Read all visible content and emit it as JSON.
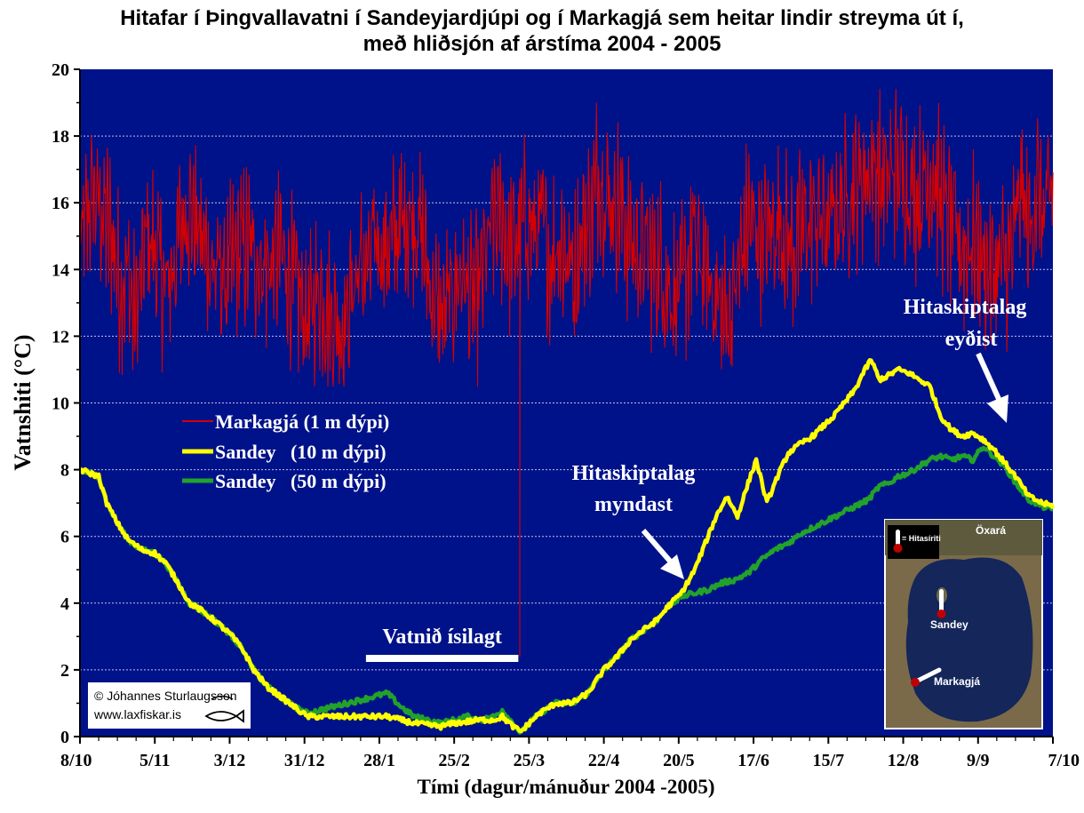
{
  "title_line1": "Hitafar í Þingvallavatni í Sandeyjardjúpi og í Markagjá sem heitar lindir streyma út í,",
  "title_line2": "með hliðsjón af árstíma 2004 - 2005",
  "chart_data": {
    "type": "line",
    "xlabel": "Tími (dagur/mánuður 2004 -2005)",
    "ylabel": "Vatnshiti (°C)",
    "ylim": [
      0,
      20
    ],
    "yticks": [
      0,
      2,
      4,
      6,
      8,
      10,
      12,
      14,
      16,
      18,
      20
    ],
    "xlim_days": [
      0,
      364
    ],
    "x_ticks": [
      {
        "label": "8/10",
        "day": 0
      },
      {
        "label": "5/11",
        "day": 28
      },
      {
        "label": "3/12",
        "day": 56
      },
      {
        "label": "31/12",
        "day": 84
      },
      {
        "label": "28/1",
        "day": 112
      },
      {
        "label": "25/2",
        "day": 140
      },
      {
        "label": "25/3",
        "day": 168
      },
      {
        "label": "22/4",
        "day": 196
      },
      {
        "label": "20/5",
        "day": 224
      },
      {
        "label": "17/6",
        "day": 252
      },
      {
        "label": "15/7",
        "day": 280
      },
      {
        "label": "12/8",
        "day": 308
      },
      {
        "label": "9/9",
        "day": 336
      },
      {
        "label": "7/10",
        "day": 364
      }
    ],
    "grid": "horizontal dotted",
    "legend_position": "left-middle",
    "plot_background": "#00128a",
    "series": [
      {
        "name": "Markagjá (1 m dýpi)",
        "color": "#d40000",
        "noisy": true,
        "points": [
          [
            0,
            14.5
          ],
          [
            5,
            16.3
          ],
          [
            12,
            15.0
          ],
          [
            15,
            13.5
          ],
          [
            18,
            14.0
          ],
          [
            20,
            12.5
          ],
          [
            23,
            13.6
          ],
          [
            25,
            15.0
          ],
          [
            28,
            14.6
          ],
          [
            32,
            13.3
          ],
          [
            36,
            14.5
          ],
          [
            40,
            16.0
          ],
          [
            45,
            15.0
          ],
          [
            50,
            14.0
          ],
          [
            55,
            13.7
          ],
          [
            60,
            14.7
          ],
          [
            65,
            14.5
          ],
          [
            70,
            14.0
          ],
          [
            75,
            14.5
          ],
          [
            80,
            13.5
          ],
          [
            83,
            13.0
          ],
          [
            86,
            12.4
          ],
          [
            88,
            13.2
          ],
          [
            90,
            13.5
          ],
          [
            93,
            12.7
          ],
          [
            96,
            12.5
          ],
          [
            99,
            12.3
          ],
          [
            102,
            13.5
          ],
          [
            105,
            14.0
          ],
          [
            108,
            14.0
          ],
          [
            111,
            15.0
          ],
          [
            114,
            14.5
          ],
          [
            118,
            15.0
          ],
          [
            121,
            15.5
          ],
          [
            125,
            15.6
          ],
          [
            128,
            15.0
          ],
          [
            131,
            13.5
          ],
          [
            134,
            12.7
          ],
          [
            137,
            12.7
          ],
          [
            140,
            13.5
          ],
          [
            143,
            14.0
          ],
          [
            146,
            13.0
          ],
          [
            149,
            13.2
          ],
          [
            152,
            14.5
          ],
          [
            155,
            15.5
          ],
          [
            158,
            15.5
          ],
          [
            161,
            14.5
          ],
          [
            164,
            15.0
          ],
          [
            167,
            15.5
          ],
          [
            170,
            15.0
          ],
          [
            173,
            15.3
          ],
          [
            176,
            14.3
          ],
          [
            179,
            15.0
          ],
          [
            182,
            14.5
          ],
          [
            185,
            13.8
          ],
          [
            188,
            15.2
          ],
          [
            191,
            15.5
          ],
          [
            194,
            17.0
          ],
          [
            196,
            16.5
          ],
          [
            199,
            16.0
          ],
          [
            202,
            16.0
          ],
          [
            205,
            15.0
          ],
          [
            208,
            14.6
          ],
          [
            211,
            14.6
          ],
          [
            214,
            14.2
          ],
          [
            217,
            14.2
          ],
          [
            220,
            13.5
          ],
          [
            223,
            13.3
          ],
          [
            226,
            13.5
          ],
          [
            229,
            15.0
          ],
          [
            232,
            14.3
          ],
          [
            235,
            13.7
          ],
          [
            238,
            13.2
          ],
          [
            241,
            12.5
          ],
          [
            244,
            13.0
          ],
          [
            247,
            14.2
          ],
          [
            250,
            15.5
          ],
          [
            253,
            15.2
          ],
          [
            256,
            15.0
          ],
          [
            259,
            15.2
          ],
          [
            262,
            15.5
          ],
          [
            265,
            14.8
          ],
          [
            268,
            14.8
          ],
          [
            271,
            15.3
          ],
          [
            274,
            15.6
          ],
          [
            277,
            15.5
          ],
          [
            280,
            15.3
          ],
          [
            283,
            15.8
          ],
          [
            286,
            16.0
          ],
          [
            289,
            16.5
          ],
          [
            292,
            16.7
          ],
          [
            295,
            17.0
          ],
          [
            298,
            17.0
          ],
          [
            301,
            16.5
          ],
          [
            304,
            17.0
          ],
          [
            307,
            17.0
          ],
          [
            310,
            16.5
          ],
          [
            313,
            16.2
          ],
          [
            316,
            16.5
          ],
          [
            319,
            17.0
          ],
          [
            322,
            16.0
          ],
          [
            325,
            15.5
          ],
          [
            328,
            15.0
          ],
          [
            331,
            14.5
          ],
          [
            334,
            15.0
          ],
          [
            337,
            14.3
          ],
          [
            340,
            14.0
          ],
          [
            343,
            14.0
          ],
          [
            346,
            14.2
          ],
          [
            349,
            14.5
          ],
          [
            352,
            16.5
          ],
          [
            355,
            15.0
          ],
          [
            358,
            16.5
          ],
          [
            361,
            15.5
          ],
          [
            364,
            16.5
          ]
        ]
      },
      {
        "name": "Sandey   (10 m dýpi)",
        "color": "#ffff00",
        "noisy": false,
        "points": [
          [
            0,
            8.0
          ],
          [
            7,
            7.8
          ],
          [
            10,
            7.0
          ],
          [
            14,
            6.4
          ],
          [
            18,
            5.9
          ],
          [
            23,
            5.6
          ],
          [
            28,
            5.5
          ],
          [
            32,
            5.2
          ],
          [
            36,
            4.7
          ],
          [
            41,
            4.0
          ],
          [
            45,
            3.8
          ],
          [
            50,
            3.5
          ],
          [
            53,
            3.3
          ],
          [
            57,
            3.0
          ],
          [
            61,
            2.6
          ],
          [
            65,
            2.0
          ],
          [
            70,
            1.5
          ],
          [
            75,
            1.2
          ],
          [
            80,
            0.9
          ],
          [
            85,
            0.6
          ],
          [
            90,
            0.6
          ],
          [
            95,
            0.6
          ],
          [
            100,
            0.6
          ],
          [
            105,
            0.6
          ],
          [
            110,
            0.6
          ],
          [
            115,
            0.6
          ],
          [
            120,
            0.5
          ],
          [
            125,
            0.4
          ],
          [
            130,
            0.35
          ],
          [
            135,
            0.3
          ],
          [
            140,
            0.4
          ],
          [
            145,
            0.45
          ],
          [
            150,
            0.5
          ],
          [
            155,
            0.5
          ],
          [
            158,
            0.6
          ],
          [
            162,
            0.3
          ],
          [
            165,
            0.15
          ],
          [
            168,
            0.4
          ],
          [
            172,
            0.7
          ],
          [
            178,
            1.0
          ],
          [
            184,
            1.0
          ],
          [
            190,
            1.3
          ],
          [
            196,
            2.0
          ],
          [
            201,
            2.4
          ],
          [
            206,
            2.9
          ],
          [
            211,
            3.2
          ],
          [
            216,
            3.5
          ],
          [
            220,
            3.9
          ],
          [
            225,
            4.3
          ],
          [
            230,
            5.0
          ],
          [
            234,
            5.8
          ],
          [
            238,
            6.6
          ],
          [
            242,
            7.2
          ],
          [
            246,
            6.6
          ],
          [
            250,
            7.6
          ],
          [
            253,
            8.3
          ],
          [
            257,
            7.0
          ],
          [
            261,
            7.8
          ],
          [
            265,
            8.5
          ],
          [
            270,
            8.8
          ],
          [
            274,
            9.0
          ],
          [
            278,
            9.3
          ],
          [
            282,
            9.6
          ],
          [
            286,
            10.0
          ],
          [
            290,
            10.4
          ],
          [
            293,
            10.9
          ],
          [
            296,
            11.3
          ],
          [
            299,
            10.7
          ],
          [
            302,
            10.8
          ],
          [
            306,
            11.0
          ],
          [
            310,
            10.9
          ],
          [
            314,
            10.7
          ],
          [
            318,
            10.5
          ],
          [
            322,
            9.6
          ],
          [
            326,
            9.2
          ],
          [
            330,
            9.0
          ],
          [
            334,
            9.1
          ],
          [
            338,
            8.9
          ],
          [
            342,
            8.6
          ],
          [
            346,
            8.2
          ],
          [
            350,
            7.8
          ],
          [
            355,
            7.2
          ],
          [
            360,
            7.0
          ],
          [
            364,
            6.9
          ]
        ]
      },
      {
        "name": "Sandey   (50 m dýpi)",
        "color": "#22a22a",
        "noisy": false,
        "points": [
          [
            0,
            8.0
          ],
          [
            7,
            7.8
          ],
          [
            10,
            7.0
          ],
          [
            14,
            6.4
          ],
          [
            18,
            5.9
          ],
          [
            23,
            5.6
          ],
          [
            28,
            5.5
          ],
          [
            32,
            5.2
          ],
          [
            36,
            4.7
          ],
          [
            41,
            4.0
          ],
          [
            45,
            3.8
          ],
          [
            50,
            3.5
          ],
          [
            53,
            3.3
          ],
          [
            57,
            3.0
          ],
          [
            61,
            2.6
          ],
          [
            65,
            2.0
          ],
          [
            70,
            1.5
          ],
          [
            75,
            1.2
          ],
          [
            80,
            0.9
          ],
          [
            85,
            0.7
          ],
          [
            90,
            0.8
          ],
          [
            95,
            0.9
          ],
          [
            100,
            1.0
          ],
          [
            105,
            1.1
          ],
          [
            110,
            1.2
          ],
          [
            115,
            1.3
          ],
          [
            120,
            0.9
          ],
          [
            125,
            0.6
          ],
          [
            130,
            0.5
          ],
          [
            135,
            0.4
          ],
          [
            140,
            0.5
          ],
          [
            145,
            0.6
          ],
          [
            150,
            0.5
          ],
          [
            155,
            0.6
          ],
          [
            158,
            0.8
          ],
          [
            162,
            0.4
          ],
          [
            165,
            0.1
          ],
          [
            168,
            0.4
          ],
          [
            172,
            0.7
          ],
          [
            178,
            1.0
          ],
          [
            184,
            1.0
          ],
          [
            190,
            1.3
          ],
          [
            196,
            2.0
          ],
          [
            201,
            2.4
          ],
          [
            206,
            2.9
          ],
          [
            211,
            3.2
          ],
          [
            216,
            3.5
          ],
          [
            220,
            3.9
          ],
          [
            225,
            4.2
          ],
          [
            230,
            4.3
          ],
          [
            235,
            4.4
          ],
          [
            240,
            4.6
          ],
          [
            245,
            4.7
          ],
          [
            250,
            4.9
          ],
          [
            255,
            5.3
          ],
          [
            260,
            5.6
          ],
          [
            265,
            5.8
          ],
          [
            270,
            6.1
          ],
          [
            275,
            6.3
          ],
          [
            280,
            6.5
          ],
          [
            285,
            6.7
          ],
          [
            290,
            6.9
          ],
          [
            295,
            7.1
          ],
          [
            299,
            7.5
          ],
          [
            303,
            7.6
          ],
          [
            306,
            7.8
          ],
          [
            310,
            7.9
          ],
          [
            314,
            8.1
          ],
          [
            318,
            8.3
          ],
          [
            322,
            8.4
          ],
          [
            326,
            8.3
          ],
          [
            330,
            8.4
          ],
          [
            334,
            8.3
          ],
          [
            338,
            8.7
          ],
          [
            342,
            8.4
          ],
          [
            346,
            8.1
          ],
          [
            350,
            7.6
          ],
          [
            355,
            7.1
          ],
          [
            360,
            6.9
          ],
          [
            364,
            6.8
          ]
        ]
      }
    ],
    "annotations": {
      "ice_label": "Vatnið ísilagt",
      "ice_period_days": [
        107,
        164
      ],
      "spike_day": 164.5,
      "form_label_line1": "Hitaskiptalag",
      "form_label_line2": "myndast",
      "dissolve_label_line1": "Hitaskiptalag",
      "dissolve_label_line2": "eyðist",
      "copyright_line1": "© Jóhannes Sturlaugsson",
      "copyright_line2": "www.laxfiskar.is",
      "map_legend": "= Hitasíriti",
      "map_place_1": "Öxará",
      "map_place_2": "Sandey",
      "map_place_3": "Markagjá"
    }
  }
}
